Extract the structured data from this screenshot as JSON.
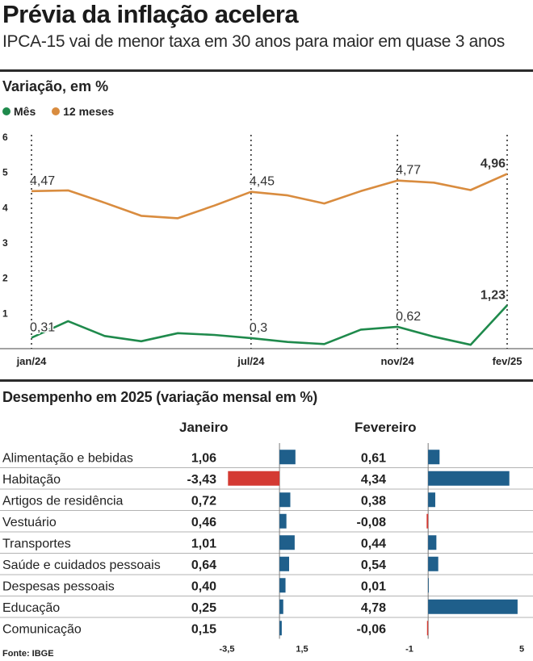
{
  "header": {
    "title": "Prévia da inflação acelera",
    "subtitle": "IPCA-15 vai de menor taxa em 30 anos para maior em quase 3 anos"
  },
  "chart_data": [
    {
      "type": "line",
      "title": "Variação, em %",
      "xlabel": "",
      "ylabel": "",
      "ylim": [
        0,
        6
      ],
      "yticks": [
        "6",
        "5",
        "4",
        "3",
        "2",
        "1"
      ],
      "x_tick_labels": [
        "jan/24",
        "jul/24",
        "nov/24",
        "fev/25"
      ],
      "x_tick_positions": [
        0,
        6,
        10,
        13
      ],
      "x": [
        "jan/24",
        "fev/24",
        "mar/24",
        "abr/24",
        "mai/24",
        "jun/24",
        "jul/24",
        "ago/24",
        "set/24",
        "out/24",
        "nov/24",
        "dez/24",
        "jan/25",
        "fev/25"
      ],
      "series": [
        {
          "name": "Mês",
          "color": "#1f8a4c",
          "values": [
            0.31,
            0.78,
            0.36,
            0.21,
            0.44,
            0.39,
            0.3,
            0.19,
            0.13,
            0.54,
            0.62,
            0.34,
            0.11,
            1.23
          ]
        },
        {
          "name": "12 meses",
          "color": "#d98c3f",
          "values": [
            4.47,
            4.49,
            4.14,
            3.77,
            3.7,
            4.06,
            4.45,
            4.35,
            4.12,
            4.47,
            4.77,
            4.71,
            4.5,
            4.96
          ]
        }
      ],
      "annotations": [
        {
          "series": "Mês",
          "x": "jan/24",
          "label": "0,31"
        },
        {
          "series": "Mês",
          "x": "jul/24",
          "label": "0,3"
        },
        {
          "series": "Mês",
          "x": "nov/24",
          "label": "0,62"
        },
        {
          "series": "Mês",
          "x": "fev/25",
          "label": "1,23"
        },
        {
          "series": "12 meses",
          "x": "jan/24",
          "label": "4,47"
        },
        {
          "series": "12 meses",
          "x": "jul/24",
          "label": "4,45"
        },
        {
          "series": "12 meses",
          "x": "nov/24",
          "label": "4,77"
        },
        {
          "series": "12 meses",
          "x": "fev/25",
          "label": "4,96"
        }
      ],
      "legend": "top-left",
      "grid": false
    },
    {
      "type": "bar",
      "title": "Desempenho em 2025 (variação mensal em %)",
      "categories": [
        "Alimentação e bebidas",
        "Habitação",
        "Artigos de residência",
        "Vestuário",
        "Transportes",
        "Saúde e cuidados pessoais",
        "Despesas pessoais",
        "Educação",
        "Comunicação"
      ],
      "series": [
        {
          "name": "Janeiro",
          "values": [
            1.06,
            -3.43,
            0.72,
            0.46,
            1.01,
            0.64,
            0.4,
            0.25,
            0.15
          ],
          "labels": [
            "1,06",
            "-3,43",
            "0,72",
            "0,46",
            "1,01",
            "0,64",
            "0,40",
            "0,25",
            "0,15"
          ],
          "xlim": [
            -3.5,
            1.5
          ],
          "axis_labels": [
            "-3,5",
            "1,5"
          ]
        },
        {
          "name": "Fevereiro",
          "values": [
            0.61,
            4.34,
            0.38,
            -0.08,
            0.44,
            0.54,
            0.01,
            4.78,
            -0.06
          ],
          "labels": [
            "0,61",
            "4,34",
            "0,38",
            "-0,08",
            "0,44",
            "0,54",
            "0,01",
            "4,78",
            "-0,06"
          ],
          "xlim": [
            -1,
            5
          ],
          "axis_labels": [
            "-1",
            "5"
          ]
        }
      ],
      "colors": {
        "positive": "#1f5f8b",
        "negative": "#d43a33"
      }
    }
  ],
  "footer": {
    "source": "Fonte: IBGE"
  }
}
